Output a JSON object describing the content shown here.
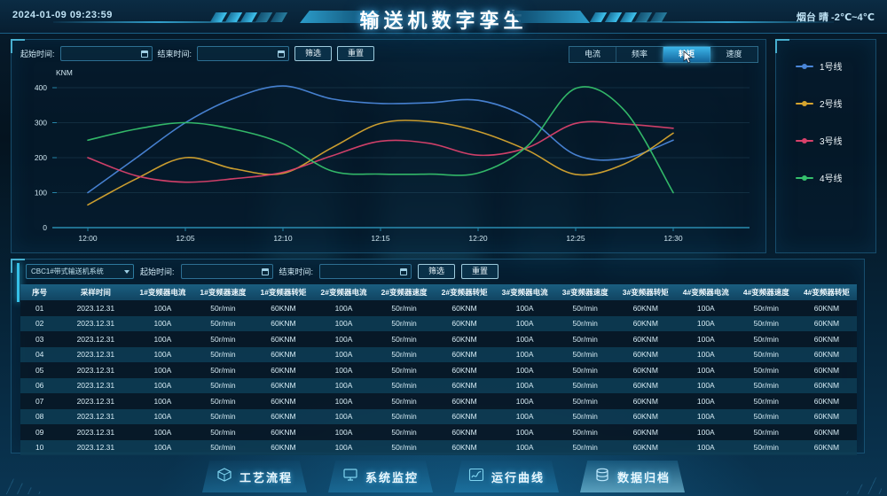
{
  "header": {
    "timestamp": "2024-01-09 09:23:59",
    "title": "输送机数字孪生",
    "weather": "烟台 晴 -2℃~4℃"
  },
  "chart_panel": {
    "start_time_label": "起始时间:",
    "end_time_label": "结束时间:",
    "start_time_value": "",
    "end_time_value": "",
    "filter_button": "筛选",
    "reset_button": "重置",
    "tabs": [
      {
        "label": "电流",
        "active": false
      },
      {
        "label": "频率",
        "active": false
      },
      {
        "label": "转矩",
        "active": true
      },
      {
        "label": "速度",
        "active": false
      }
    ]
  },
  "chart_data": {
    "type": "line",
    "title": "",
    "xlabel": "",
    "ylabel": "KNM",
    "grid": true,
    "legend_position": "right",
    "ylim": [
      0,
      400
    ],
    "y_ticks": [
      0,
      100,
      200,
      300,
      400
    ],
    "x_ticks": [
      "12:00",
      "12:05",
      "12:10",
      "12:15",
      "12:20",
      "12:25",
      "12:30"
    ],
    "x_minutes": [
      0,
      2.5,
      5,
      7.5,
      10,
      12.5,
      15,
      17.5,
      20,
      22.5,
      25,
      27.5,
      30
    ],
    "series": [
      {
        "name": "1号线",
        "color": "#4a86d8",
        "values": [
          100,
          200,
          300,
          370,
          405,
          368,
          355,
          357,
          364,
          315,
          208,
          198,
          250
        ]
      },
      {
        "name": "2号线",
        "color": "#d5a42f",
        "values": [
          65,
          140,
          200,
          168,
          155,
          228,
          298,
          303,
          275,
          222,
          152,
          182,
          270
        ]
      },
      {
        "name": "3号线",
        "color": "#d9416b",
        "values": [
          200,
          148,
          130,
          140,
          158,
          205,
          247,
          241,
          207,
          228,
          298,
          296,
          284
        ]
      },
      {
        "name": "4号线",
        "color": "#35c06c",
        "values": [
          250,
          282,
          300,
          281,
          240,
          162,
          153,
          153,
          156,
          232,
          398,
          335,
          100
        ]
      }
    ]
  },
  "table_panel": {
    "system_select_value": "CBC1#带式输送机系统",
    "start_time_label": "起始时间:",
    "end_time_label": "结束时间:",
    "start_time_value": "",
    "end_time_value": "",
    "filter_button": "筛选",
    "reset_button": "重置",
    "columns": [
      "序号",
      "采样时间",
      "1#变频器电流",
      "1#变频器速度",
      "1#变频器转矩",
      "2#变频器电流",
      "2#变频器速度",
      "2#变频器转矩",
      "3#变频器电流",
      "3#变频器速度",
      "3#变频器转矩",
      "4#变频器电流",
      "4#变频器速度",
      "4#变频器转矩"
    ],
    "rows": [
      [
        "01",
        "2023.12.31",
        "100A",
        "50r/min",
        "60KNM",
        "100A",
        "50r/min",
        "60KNM",
        "100A",
        "50r/min",
        "60KNM",
        "100A",
        "50r/min",
        "60KNM"
      ],
      [
        "02",
        "2023.12.31",
        "100A",
        "50r/min",
        "60KNM",
        "100A",
        "50r/min",
        "60KNM",
        "100A",
        "50r/min",
        "60KNM",
        "100A",
        "50r/min",
        "60KNM"
      ],
      [
        "03",
        "2023.12.31",
        "100A",
        "50r/min",
        "60KNM",
        "100A",
        "50r/min",
        "60KNM",
        "100A",
        "50r/min",
        "60KNM",
        "100A",
        "50r/min",
        "60KNM"
      ],
      [
        "04",
        "2023.12.31",
        "100A",
        "50r/min",
        "60KNM",
        "100A",
        "50r/min",
        "60KNM",
        "100A",
        "50r/min",
        "60KNM",
        "100A",
        "50r/min",
        "60KNM"
      ],
      [
        "05",
        "2023.12.31",
        "100A",
        "50r/min",
        "60KNM",
        "100A",
        "50r/min",
        "60KNM",
        "100A",
        "50r/min",
        "60KNM",
        "100A",
        "50r/min",
        "60KNM"
      ],
      [
        "06",
        "2023.12.31",
        "100A",
        "50r/min",
        "60KNM",
        "100A",
        "50r/min",
        "60KNM",
        "100A",
        "50r/min",
        "60KNM",
        "100A",
        "50r/min",
        "60KNM"
      ],
      [
        "07",
        "2023.12.31",
        "100A",
        "50r/min",
        "60KNM",
        "100A",
        "50r/min",
        "60KNM",
        "100A",
        "50r/min",
        "60KNM",
        "100A",
        "50r/min",
        "60KNM"
      ],
      [
        "08",
        "2023.12.31",
        "100A",
        "50r/min",
        "60KNM",
        "100A",
        "50r/min",
        "60KNM",
        "100A",
        "50r/min",
        "60KNM",
        "100A",
        "50r/min",
        "60KNM"
      ],
      [
        "09",
        "2023.12.31",
        "100A",
        "50r/min",
        "60KNM",
        "100A",
        "50r/min",
        "60KNM",
        "100A",
        "50r/min",
        "60KNM",
        "100A",
        "50r/min",
        "60KNM"
      ],
      [
        "10",
        "2023.12.31",
        "100A",
        "50r/min",
        "60KNM",
        "100A",
        "50r/min",
        "60KNM",
        "100A",
        "50r/min",
        "60KNM",
        "100A",
        "50r/min",
        "60KNM"
      ]
    ]
  },
  "bottom_nav": {
    "items": [
      {
        "label": "工艺流程",
        "icon": "cube-icon",
        "active": false
      },
      {
        "label": "系统监控",
        "icon": "monitor-icon",
        "active": false
      },
      {
        "label": "运行曲线",
        "icon": "curve-icon",
        "active": false
      },
      {
        "label": "数据归档",
        "icon": "database-icon",
        "active": true
      }
    ]
  },
  "colors": {
    "accent": "#35c0e8",
    "panel_border": "#23698f",
    "tab_active": "#2aa0d8"
  }
}
